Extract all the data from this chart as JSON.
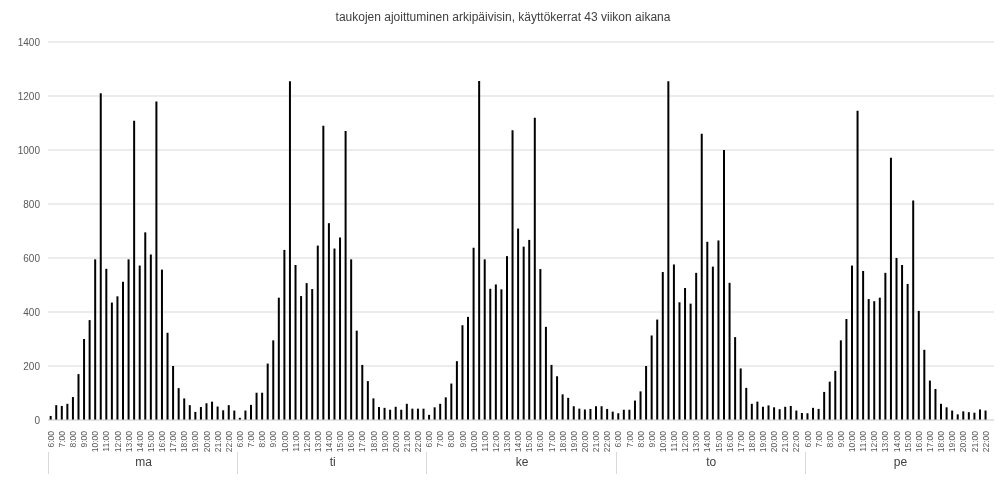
{
  "chart_data": {
    "type": "bar",
    "title": "taukojen ajoittuminen arkipäivisin, käyttökerrat 43 viikon aikana",
    "categories": [
      "6:00",
      null,
      "7:00",
      null,
      "8:00",
      null,
      "9:00",
      null,
      "10:00",
      null,
      "11:00",
      null,
      "12:00",
      null,
      "13:00",
      null,
      "14:00",
      null,
      "15:00",
      null,
      "16:00",
      null,
      "17:00",
      null,
      "18:00",
      null,
      "19:00",
      null,
      "20:00",
      null,
      "21:00",
      null,
      "22:00",
      null,
      "6:00",
      null,
      "7:00",
      null,
      "8:00",
      null,
      "9:00",
      null,
      "10:00",
      null,
      "11:00",
      null,
      "12:00",
      null,
      "13:00",
      null,
      "14:00",
      null,
      "15:00",
      null,
      "16:00",
      null,
      "17:00",
      null,
      "18:00",
      null,
      "19:00",
      null,
      "20:00",
      null,
      "21:00",
      null,
      "22:00",
      null,
      "6:00",
      null,
      "7:00",
      null,
      "8:00",
      null,
      "9:00",
      null,
      "10:00",
      null,
      "11:00",
      null,
      "12:00",
      null,
      "13:00",
      null,
      "14:00",
      null,
      "15:00",
      null,
      "16:00",
      null,
      "17:00",
      null,
      "18:00",
      null,
      "19:00",
      null,
      "20:00",
      null,
      "21:00",
      null,
      "22:00",
      null,
      "6:00",
      null,
      "7:00",
      null,
      "8:00",
      null,
      "9:00",
      null,
      "10:00",
      null,
      "11:00",
      null,
      "12:00",
      null,
      "13:00",
      null,
      "14:00",
      null,
      "15:00",
      null,
      "16:00",
      null,
      "17:00",
      null,
      "18:00",
      null,
      "19:00",
      null,
      "20:00",
      null,
      "21:00",
      null,
      "22:00",
      null,
      "6:00",
      null,
      "7:00",
      null,
      "8:00",
      null,
      "9:00",
      null,
      "10:00",
      null,
      "11:00",
      null,
      "12:00",
      null,
      "13:00",
      null,
      "14:00",
      null,
      "15:00",
      null,
      "16:00",
      null,
      "17:00",
      null,
      "18:00",
      null,
      "19:00",
      null,
      "20:00",
      null,
      "21:00",
      null,
      "22:00",
      null
    ],
    "values": [
      15,
      55,
      52,
      60,
      85,
      170,
      300,
      370,
      595,
      1210,
      560,
      435,
      458,
      512,
      595,
      1108,
      572,
      695,
      613,
      1180,
      557,
      323,
      200,
      118,
      80,
      55,
      30,
      48,
      62,
      68,
      50,
      36,
      55,
      35,
      8,
      35,
      56,
      101,
      101,
      209,
      295,
      453,
      630,
      1255,
      574,
      459,
      507,
      485,
      646,
      1090,
      729,
      635,
      676,
      1070,
      595,
      331,
      204,
      144,
      80,
      48,
      45,
      38,
      49,
      38,
      60,
      42,
      42,
      42,
      19,
      47,
      60,
      84,
      135,
      218,
      351,
      382,
      638,
      1256,
      595,
      486,
      502,
      484,
      607,
      1073,
      709,
      642,
      667,
      1119,
      559,
      345,
      204,
      162,
      95,
      82,
      51,
      42,
      39,
      41,
      51,
      51,
      41,
      31,
      25,
      38,
      38,
      72,
      106,
      200,
      313,
      372,
      548,
      1255,
      576,
      436,
      489,
      431,
      545,
      1060,
      660,
      568,
      665,
      1000,
      508,
      307,
      191,
      119,
      60,
      68,
      49,
      54,
      47,
      40,
      49,
      52,
      35,
      26,
      25,
      45,
      41,
      104,
      142,
      182,
      295,
      374,
      572,
      1145,
      552,
      448,
      440,
      453,
      545,
      971,
      600,
      574,
      504,
      813,
      404,
      260,
      146,
      115,
      60,
      47,
      35,
      21,
      32,
      29,
      27,
      39,
      35,
      null
    ],
    "color": "#000000",
    "ylim": [
      0,
      1400
    ],
    "yticks": [
      0,
      200,
      400,
      600,
      800,
      1000,
      1200,
      1400
    ],
    "grid": "y",
    "annotations": [
      "ma",
      "ti",
      "ke",
      "to",
      "pe"
    ]
  }
}
